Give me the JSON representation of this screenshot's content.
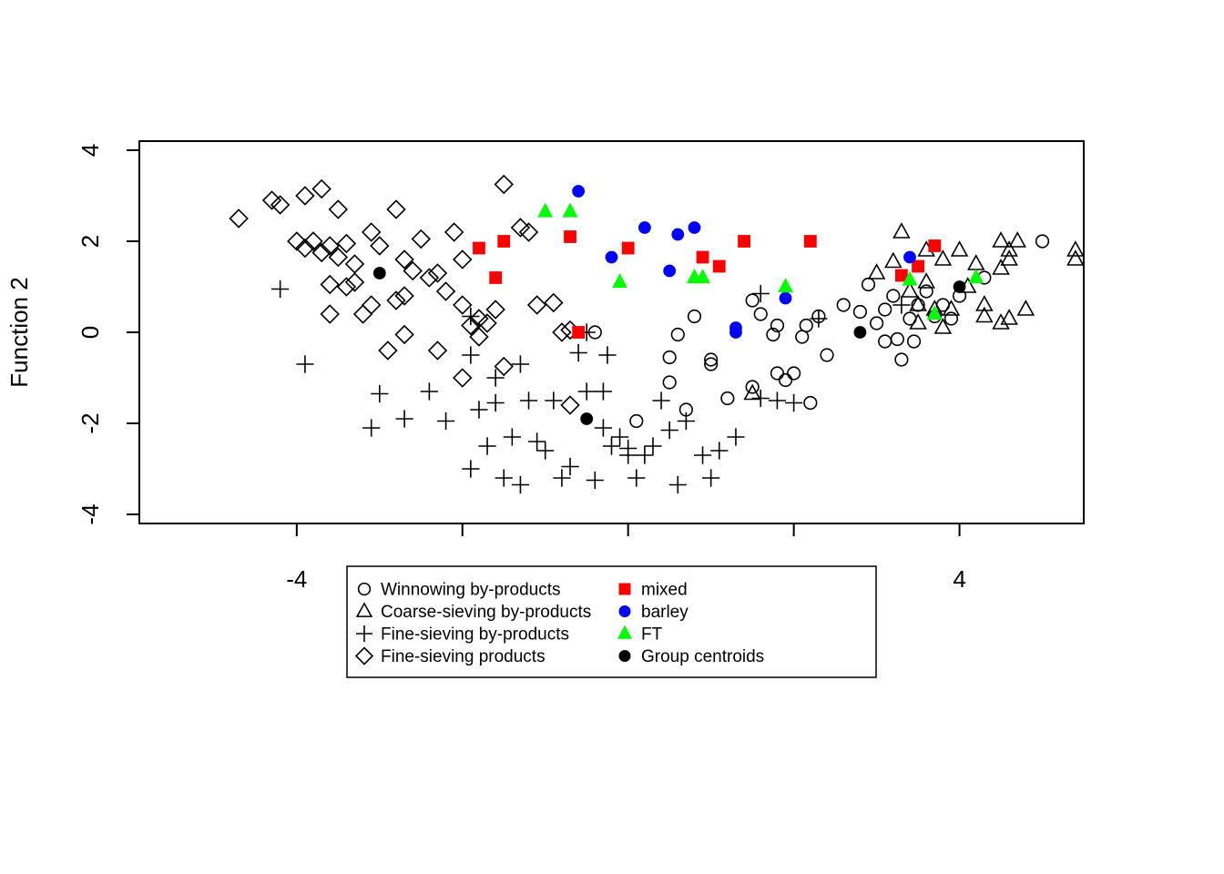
{
  "chart_data": {
    "type": "scatter",
    "title": "",
    "xlabel": "",
    "ylabel": "Function 2",
    "xlim": [
      -5.9,
      5.5
    ],
    "ylim": [
      -4.2,
      4.2
    ],
    "x_ticks": [
      -4,
      4
    ],
    "x_tick_labels": [
      "-4",
      "4"
    ],
    "y_ticks": [
      -4,
      -2,
      0,
      2,
      4
    ],
    "y_tick_labels": [
      "-4",
      "-2",
      "0",
      "2",
      "4"
    ],
    "grid": false,
    "legend_placement": "bottom-center",
    "colors": {
      "mixed": "#ff0000",
      "barley": "#0000ff",
      "FT": "#00ff00",
      "centroid": "#000000",
      "outline": "#000000"
    },
    "legend": [
      {
        "label": "Winnowing by-products",
        "marker": "circle-open"
      },
      {
        "label": "Coarse-sieving by-products",
        "marker": "triangle-open"
      },
      {
        "label": "Fine-sieving by-products",
        "marker": "plus"
      },
      {
        "label": "Fine-sieving products",
        "marker": "diamond-open"
      },
      {
        "label": "mixed",
        "marker": "square-filled",
        "color": "#ff0000"
      },
      {
        "label": "barley",
        "marker": "circle-filled",
        "color": "#0000ff"
      },
      {
        "label": "FT",
        "marker": "triangle-filled",
        "color": "#00ff00"
      },
      {
        "label": "Group centroids",
        "marker": "circle-filled",
        "color": "#000000"
      }
    ],
    "series": [
      {
        "name": "Winnowing by-products",
        "marker": "circle-open",
        "points": [
          [
            -0.4,
            0.0
          ],
          [
            0.5,
            -0.55
          ],
          [
            0.5,
            -1.1
          ],
          [
            0.1,
            -1.95
          ],
          [
            0.6,
            -0.05
          ],
          [
            0.7,
            -1.7
          ],
          [
            0.8,
            0.35
          ],
          [
            1.0,
            -0.6
          ],
          [
            1.2,
            -1.45
          ],
          [
            1.5,
            0.7
          ],
          [
            1.6,
            0.4
          ],
          [
            1.8,
            0.15
          ],
          [
            1.5,
            -1.2
          ],
          [
            1.8,
            -0.9
          ],
          [
            1.9,
            -1.05
          ],
          [
            2.1,
            -0.1
          ],
          [
            2.0,
            -0.9
          ],
          [
            2.2,
            -1.55
          ],
          [
            2.3,
            0.35
          ],
          [
            2.4,
            -0.5
          ],
          [
            2.6,
            0.6
          ],
          [
            2.8,
            0.45
          ],
          [
            2.9,
            1.05
          ],
          [
            3.0,
            0.2
          ],
          [
            3.1,
            0.5
          ],
          [
            3.1,
            -0.2
          ],
          [
            3.2,
            0.8
          ],
          [
            3.3,
            -0.6
          ],
          [
            3.4,
            0.3
          ],
          [
            3.5,
            0.6
          ],
          [
            3.6,
            0.9
          ],
          [
            3.7,
            0.35
          ],
          [
            3.8,
            0.6
          ],
          [
            4.0,
            0.8
          ],
          [
            4.3,
            1.2
          ],
          [
            5.0,
            2.0
          ],
          [
            1.75,
            -0.05
          ],
          [
            2.15,
            0.15
          ],
          [
            3.45,
            -0.2
          ],
          [
            3.25,
            -0.15
          ],
          [
            1.0,
            -0.7
          ],
          [
            3.9,
            0.3
          ]
        ]
      },
      {
        "name": "Coarse-sieving by-products",
        "marker": "triangle-open",
        "points": [
          [
            1.5,
            -1.35
          ],
          [
            3.0,
            1.3
          ],
          [
            3.2,
            1.55
          ],
          [
            3.3,
            2.2
          ],
          [
            3.5,
            0.2
          ],
          [
            3.5,
            0.6
          ],
          [
            3.6,
            1.1
          ],
          [
            3.6,
            1.8
          ],
          [
            3.8,
            0.1
          ],
          [
            3.8,
            1.6
          ],
          [
            3.9,
            0.5
          ],
          [
            4.0,
            1.8
          ],
          [
            4.1,
            1.0
          ],
          [
            4.2,
            1.5
          ],
          [
            4.3,
            0.6
          ],
          [
            4.5,
            1.4
          ],
          [
            4.5,
            2.0
          ],
          [
            4.5,
            0.2
          ],
          [
            4.6,
            1.6
          ],
          [
            4.6,
            1.8
          ],
          [
            4.7,
            2.0
          ],
          [
            4.8,
            0.5
          ],
          [
            5.4,
            1.6
          ],
          [
            5.4,
            1.8
          ],
          [
            4.6,
            0.3
          ],
          [
            4.3,
            0.35
          ],
          [
            3.4,
            0.9
          ],
          [
            3.7,
            0.5
          ]
        ]
      },
      {
        "name": "Fine-sieving by-products",
        "marker": "plus",
        "points": [
          [
            -4.2,
            0.95
          ],
          [
            -3.9,
            -0.7
          ],
          [
            -3.1,
            -2.1
          ],
          [
            -3.0,
            -1.35
          ],
          [
            -2.7,
            -1.9
          ],
          [
            -2.4,
            -1.3
          ],
          [
            -2.2,
            -1.95
          ],
          [
            -1.9,
            -3.0
          ],
          [
            -1.8,
            -1.7
          ],
          [
            -1.7,
            -2.5
          ],
          [
            -1.6,
            -1.0
          ],
          [
            -1.6,
            -1.55
          ],
          [
            -1.5,
            -3.2
          ],
          [
            -1.4,
            -2.3
          ],
          [
            -1.3,
            -3.35
          ],
          [
            -1.2,
            -1.5
          ],
          [
            -1.1,
            -2.4
          ],
          [
            -1.0,
            -2.6
          ],
          [
            -0.9,
            -1.5
          ],
          [
            -0.8,
            -3.2
          ],
          [
            -0.7,
            -2.95
          ],
          [
            -0.6,
            -0.45
          ],
          [
            -0.5,
            -1.3
          ],
          [
            -0.4,
            -3.25
          ],
          [
            -0.3,
            -2.1
          ],
          [
            -0.3,
            -1.3
          ],
          [
            -0.2,
            -2.5
          ],
          [
            -0.1,
            -2.3
          ],
          [
            0.0,
            -2.55
          ],
          [
            0.1,
            -3.2
          ],
          [
            0.2,
            -2.7
          ],
          [
            0.3,
            -2.5
          ],
          [
            0.4,
            -1.5
          ],
          [
            0.5,
            -2.15
          ],
          [
            0.6,
            -3.35
          ],
          [
            0.7,
            -1.95
          ],
          [
            0.9,
            -2.7
          ],
          [
            1.0,
            -3.2
          ],
          [
            1.1,
            -2.6
          ],
          [
            1.3,
            -2.3
          ],
          [
            1.6,
            -1.45
          ],
          [
            1.8,
            -1.5
          ],
          [
            2.0,
            -1.55
          ],
          [
            1.6,
            0.85
          ],
          [
            -1.9,
            0.35
          ],
          [
            -1.3,
            -0.7
          ],
          [
            -1.9,
            -0.5
          ],
          [
            -0.5,
            0.0
          ],
          [
            -0.25,
            -0.5
          ],
          [
            0.0,
            -2.7
          ],
          [
            2.3,
            0.3
          ],
          [
            3.3,
            0.6
          ]
        ]
      },
      {
        "name": "Fine-sieving products",
        "marker": "diamond-open",
        "points": [
          [
            -4.7,
            2.5
          ],
          [
            -4.3,
            2.9
          ],
          [
            -4.2,
            2.8
          ],
          [
            -3.9,
            3.0
          ],
          [
            -3.7,
            3.15
          ],
          [
            -4.0,
            2.0
          ],
          [
            -3.9,
            1.85
          ],
          [
            -3.7,
            1.75
          ],
          [
            -3.6,
            1.05
          ],
          [
            -3.5,
            2.7
          ],
          [
            -3.4,
            1.95
          ],
          [
            -3.4,
            1.0
          ],
          [
            -3.3,
            1.1
          ],
          [
            -3.2,
            0.4
          ],
          [
            -3.1,
            0.6
          ],
          [
            -3.0,
            1.9
          ],
          [
            -2.9,
            -0.4
          ],
          [
            -2.8,
            2.7
          ],
          [
            -2.7,
            1.6
          ],
          [
            -2.7,
            0.8
          ],
          [
            -2.6,
            1.35
          ],
          [
            -2.5,
            2.05
          ],
          [
            -2.4,
            1.2
          ],
          [
            -2.3,
            1.3
          ],
          [
            -2.2,
            0.9
          ],
          [
            -2.1,
            2.2
          ],
          [
            -2.0,
            0.6
          ],
          [
            -1.9,
            0.15
          ],
          [
            -1.8,
            0.3
          ],
          [
            -1.6,
            0.5
          ],
          [
            -1.5,
            -0.75
          ],
          [
            -1.5,
            3.25
          ],
          [
            -1.3,
            2.3
          ],
          [
            -1.2,
            2.2
          ],
          [
            -1.1,
            0.6
          ],
          [
            -0.9,
            0.65
          ],
          [
            -0.8,
            0.0
          ],
          [
            -0.7,
            0.05
          ],
          [
            -2.0,
            -1.0
          ],
          [
            -1.8,
            -0.1
          ],
          [
            -3.5,
            1.65
          ],
          [
            -3.3,
            1.5
          ],
          [
            -3.1,
            2.2
          ],
          [
            -2.7,
            -0.05
          ],
          [
            -0.7,
            -1.6
          ],
          [
            -3.8,
            2.0
          ],
          [
            -2.0,
            1.6
          ],
          [
            -1.7,
            0.2
          ],
          [
            -3.6,
            1.9
          ],
          [
            -2.8,
            0.7
          ],
          [
            -3.6,
            0.4
          ],
          [
            -2.3,
            -0.4
          ]
        ]
      },
      {
        "name": "mixed",
        "marker": "square-filled",
        "color": "#ff0000",
        "points": [
          [
            -1.8,
            1.85
          ],
          [
            -1.6,
            1.2
          ],
          [
            -1.5,
            2.0
          ],
          [
            -0.7,
            2.1
          ],
          [
            -0.6,
            0.0
          ],
          [
            0.0,
            1.85
          ],
          [
            0.9,
            1.65
          ],
          [
            1.1,
            1.45
          ],
          [
            1.4,
            2.0
          ],
          [
            2.2,
            2.0
          ],
          [
            3.3,
            1.25
          ],
          [
            3.5,
            1.45
          ],
          [
            3.7,
            1.9
          ]
        ]
      },
      {
        "name": "barley",
        "marker": "circle-filled",
        "color": "#0000ff",
        "points": [
          [
            -0.6,
            3.1
          ],
          [
            -0.2,
            1.65
          ],
          [
            0.2,
            2.3
          ],
          [
            0.5,
            1.35
          ],
          [
            0.6,
            2.15
          ],
          [
            0.8,
            2.3
          ],
          [
            1.3,
            0.0
          ],
          [
            1.3,
            0.1
          ],
          [
            1.9,
            0.75
          ],
          [
            3.4,
            1.65
          ]
        ]
      },
      {
        "name": "FT",
        "marker": "triangle-filled",
        "color": "#00ff00",
        "points": [
          [
            -1.0,
            2.65
          ],
          [
            -0.7,
            2.65
          ],
          [
            -0.1,
            1.1
          ],
          [
            0.8,
            1.2
          ],
          [
            0.9,
            1.2
          ],
          [
            1.9,
            1.0
          ],
          [
            3.4,
            1.15
          ],
          [
            3.7,
            0.4
          ],
          [
            4.2,
            1.2
          ]
        ]
      },
      {
        "name": "Group centroids",
        "marker": "circle-filled",
        "color": "#000000",
        "points": [
          [
            -3.0,
            1.3
          ],
          [
            -0.5,
            -1.9
          ],
          [
            2.8,
            0.0
          ],
          [
            4.0,
            1.0
          ]
        ]
      }
    ]
  }
}
